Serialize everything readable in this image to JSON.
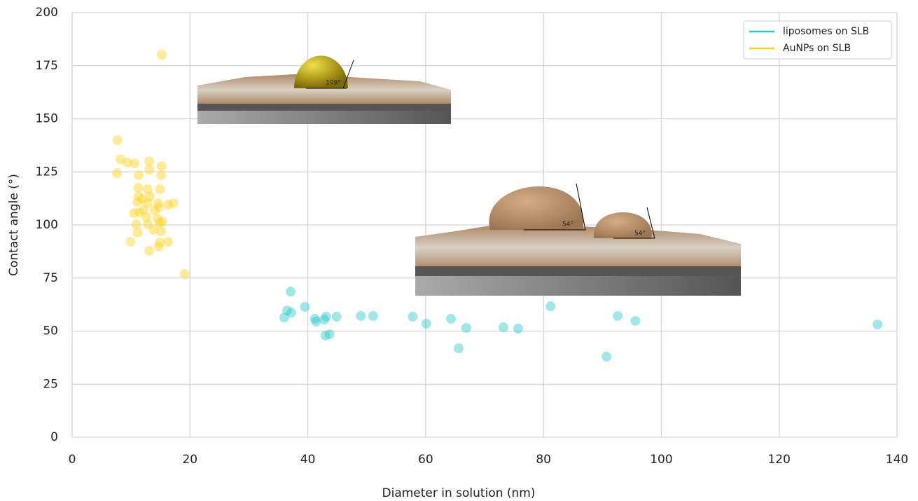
{
  "chart_data": {
    "type": "scatter",
    "xlabel": "Diameter in solution (nm)",
    "ylabel": "Contact angle (°)",
    "xlim": [
      0,
      140
    ],
    "xticks": [
      0,
      20,
      40,
      60,
      80,
      100,
      120,
      140
    ],
    "ylim": [
      0,
      200
    ],
    "yticks": [
      0,
      25,
      50,
      75,
      100,
      125,
      150,
      175,
      200
    ],
    "grid": true,
    "legend": "upper right",
    "annotations": [
      "109°",
      "54°",
      "54°"
    ],
    "series": [
      {
        "name": "liposomes on SLB",
        "color": "#2ec7cc",
        "x": [
          136.7,
          36.0,
          36.5,
          37.1,
          37.2,
          39.5,
          41.2,
          41.4,
          42.8,
          43.1,
          43.0,
          43.7,
          44.9,
          49.0,
          51.1,
          57.8,
          60.1,
          64.3,
          65.6,
          66.9,
          73.2,
          75.7,
          81.2,
          90.7,
          92.6,
          95.6
        ],
        "y": [
          53.1,
          56.4,
          59.7,
          68.6,
          58.7,
          61.4,
          55.8,
          54.5,
          55.4,
          56.8,
          47.9,
          48.5,
          56.8,
          57.1,
          57.1,
          56.8,
          53.5,
          55.8,
          41.9,
          51.5,
          51.8,
          51.2,
          61.7,
          38.0,
          57.1,
          54.8
        ]
      },
      {
        "name": "AuNPs on SLB",
        "color": "#ffd21f",
        "x": [
          15.2,
          7.7,
          8.2,
          7.6,
          9.4,
          10.6,
          13.1,
          13.1,
          11.3,
          15.2,
          15.1,
          11.2,
          12.8,
          14.9,
          11.3,
          13.2,
          11.1,
          12.8,
          14.6,
          16.3,
          17.2,
          12.1,
          10.5,
          14.0,
          14.7,
          11.4,
          12.6,
          14.5,
          15.3,
          10.9,
          12.9,
          14.9,
          13.8,
          11.1,
          15.1,
          9.9,
          14.9,
          16.3,
          14.7,
          13.1,
          19.1,
          11.9
        ],
        "y": [
          180.2,
          139.9,
          131,
          124.4,
          129.4,
          129,
          130,
          126,
          123.4,
          127.7,
          123.4,
          117.5,
          116.8,
          116.8,
          113.5,
          113.5,
          110.9,
          110.2,
          110.2,
          109.6,
          110.2,
          106.9,
          105.6,
          106.9,
          108.3,
          105.9,
          103.6,
          103,
          101.7,
          100.3,
          100.3,
          101,
          97.7,
          96.4,
          97,
          92.1,
          91.7,
          92.1,
          89.8,
          87.8,
          76.9,
          112.2
        ]
      }
    ]
  }
}
